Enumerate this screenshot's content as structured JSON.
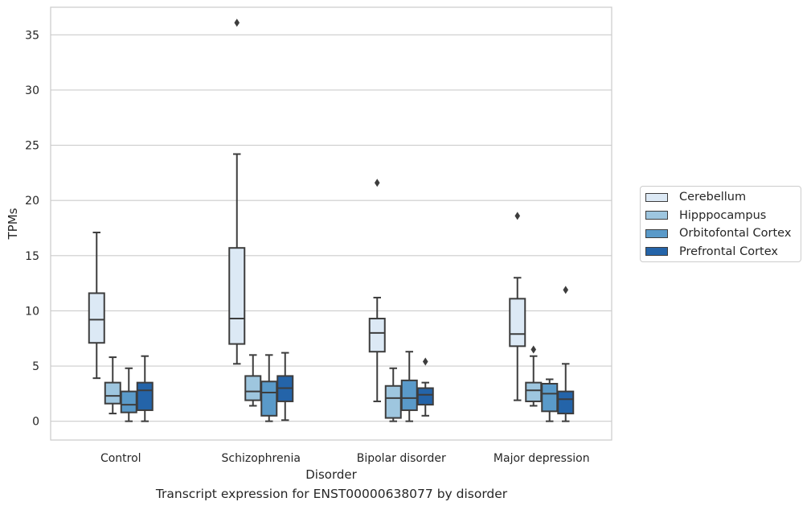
{
  "chart_data": {
    "type": "box",
    "title": "Transcript expression for ENST00000638077 by disorder",
    "xlabel": "Disorder",
    "ylabel": "TPMs",
    "ylim": [
      -1.7,
      37.5
    ],
    "yticks": [
      0,
      5,
      10,
      15,
      20,
      25,
      30,
      35
    ],
    "grid": "horizontal",
    "legend_position": "right",
    "categories": [
      "Control",
      "Schizophrenia",
      "Bipolar disorder",
      "Major depression"
    ],
    "series": [
      {
        "name": "Cerebellum",
        "color": "#dce9f5",
        "boxes": [
          {
            "whislo": 3.9,
            "q1": 7.1,
            "med": 9.2,
            "q3": 11.6,
            "whishi": 17.1,
            "fliers": []
          },
          {
            "whislo": 5.2,
            "q1": 7.0,
            "med": 9.3,
            "q3": 15.7,
            "whishi": 24.2,
            "fliers": [
              36.1
            ]
          },
          {
            "whislo": 1.8,
            "q1": 6.3,
            "med": 8.0,
            "q3": 9.3,
            "whishi": 11.2,
            "fliers": [
              21.6
            ]
          },
          {
            "whislo": 1.9,
            "q1": 6.8,
            "med": 7.9,
            "q3": 11.1,
            "whishi": 13.0,
            "fliers": [
              18.6
            ]
          }
        ]
      },
      {
        "name": "Hipppocampus",
        "color": "#9ec6df",
        "boxes": [
          {
            "whislo": 0.7,
            "q1": 1.6,
            "med": 2.3,
            "q3": 3.5,
            "whishi": 5.8,
            "fliers": []
          },
          {
            "whislo": 1.4,
            "q1": 1.9,
            "med": 2.7,
            "q3": 4.1,
            "whishi": 6.0,
            "fliers": []
          },
          {
            "whislo": 0.0,
            "q1": 0.3,
            "med": 2.1,
            "q3": 3.2,
            "whishi": 4.8,
            "fliers": []
          },
          {
            "whislo": 1.4,
            "q1": 1.8,
            "med": 2.8,
            "q3": 3.5,
            "whishi": 5.9,
            "fliers": [
              6.5
            ]
          }
        ]
      },
      {
        "name": "Orbitofontal Cortex",
        "color": "#5a9ac9",
        "boxes": [
          {
            "whislo": 0.0,
            "q1": 0.8,
            "med": 1.5,
            "q3": 2.7,
            "whishi": 4.8,
            "fliers": []
          },
          {
            "whislo": 0.0,
            "q1": 0.5,
            "med": 2.6,
            "q3": 3.6,
            "whishi": 6.0,
            "fliers": []
          },
          {
            "whislo": 0.0,
            "q1": 1.0,
            "med": 2.1,
            "q3": 3.7,
            "whishi": 6.3,
            "fliers": []
          },
          {
            "whislo": 0.0,
            "q1": 0.9,
            "med": 2.5,
            "q3": 3.4,
            "whishi": 3.8,
            "fliers": []
          }
        ]
      },
      {
        "name": "Prefrontal Cortex",
        "color": "#2464a9",
        "boxes": [
          {
            "whislo": 0.0,
            "q1": 1.0,
            "med": 2.8,
            "q3": 3.5,
            "whishi": 5.9,
            "fliers": []
          },
          {
            "whislo": 0.1,
            "q1": 1.8,
            "med": 3.0,
            "q3": 4.1,
            "whishi": 6.2,
            "fliers": []
          },
          {
            "whislo": 0.5,
            "q1": 1.5,
            "med": 2.4,
            "q3": 3.0,
            "whishi": 3.5,
            "fliers": [
              5.4
            ]
          },
          {
            "whislo": 0.0,
            "q1": 0.7,
            "med": 2.0,
            "q3": 2.7,
            "whishi": 5.2,
            "fliers": [
              11.9
            ]
          }
        ]
      }
    ]
  }
}
